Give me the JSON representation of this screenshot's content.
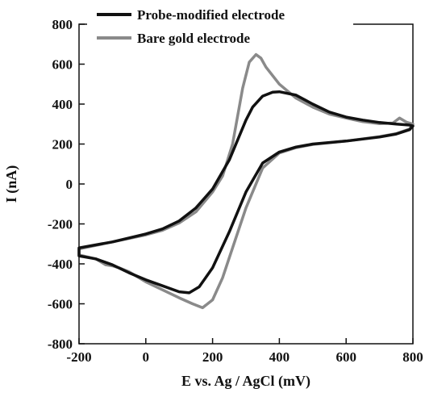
{
  "chart_data": {
    "type": "line",
    "title": "",
    "xlabel": "E vs. Ag / AgCl (mV)",
    "ylabel": "I (nA)",
    "xlim": [
      -200,
      800
    ],
    "ylim": [
      -800,
      800
    ],
    "xticks": [
      -200,
      0,
      200,
      400,
      600,
      800
    ],
    "yticks": [
      -800,
      -600,
      -400,
      -200,
      0,
      200,
      400,
      600,
      800
    ],
    "grid": false,
    "legend_position": "top-left",
    "series": [
      {
        "name": "Probe-modified electrode",
        "color": "#111111",
        "points": [
          [
            -200,
            -320
          ],
          [
            -100,
            -290
          ],
          [
            0,
            -250
          ],
          [
            50,
            -225
          ],
          [
            100,
            -185
          ],
          [
            150,
            -120
          ],
          [
            200,
            -25
          ],
          [
            250,
            120
          ],
          [
            300,
            320
          ],
          [
            320,
            385
          ],
          [
            350,
            440
          ],
          [
            380,
            460
          ],
          [
            400,
            462
          ],
          [
            450,
            445
          ],
          [
            500,
            400
          ],
          [
            550,
            360
          ],
          [
            600,
            335
          ],
          [
            650,
            320
          ],
          [
            700,
            308
          ],
          [
            750,
            300
          ],
          [
            790,
            295
          ],
          [
            800,
            290
          ],
          [
            790,
            272
          ],
          [
            750,
            250
          ],
          [
            700,
            235
          ],
          [
            600,
            215
          ],
          [
            500,
            200
          ],
          [
            450,
            185
          ],
          [
            400,
            160
          ],
          [
            350,
            105
          ],
          [
            300,
            -40
          ],
          [
            250,
            -240
          ],
          [
            200,
            -420
          ],
          [
            160,
            -515
          ],
          [
            130,
            -545
          ],
          [
            100,
            -540
          ],
          [
            50,
            -510
          ],
          [
            0,
            -480
          ],
          [
            -50,
            -445
          ],
          [
            -100,
            -405
          ],
          [
            -150,
            -375
          ],
          [
            -200,
            -360
          ]
        ]
      },
      {
        "name": "Bare gold electrode",
        "color": "#8a8a8a",
        "points": [
          [
            -200,
            -325
          ],
          [
            -100,
            -290
          ],
          [
            0,
            -255
          ],
          [
            50,
            -232
          ],
          [
            100,
            -195
          ],
          [
            150,
            -140
          ],
          [
            200,
            -40
          ],
          [
            230,
            40
          ],
          [
            260,
            200
          ],
          [
            290,
            480
          ],
          [
            310,
            610
          ],
          [
            330,
            648
          ],
          [
            345,
            630
          ],
          [
            360,
            585
          ],
          [
            400,
            500
          ],
          [
            450,
            430
          ],
          [
            500,
            385
          ],
          [
            550,
            350
          ],
          [
            600,
            330
          ],
          [
            650,
            312
          ],
          [
            700,
            302
          ],
          [
            740,
            305
          ],
          [
            760,
            330
          ],
          [
            780,
            310
          ],
          [
            800,
            300
          ],
          [
            790,
            275
          ],
          [
            750,
            252
          ],
          [
            700,
            237
          ],
          [
            600,
            215
          ],
          [
            500,
            198
          ],
          [
            450,
            182
          ],
          [
            400,
            155
          ],
          [
            350,
            80
          ],
          [
            300,
            -120
          ],
          [
            260,
            -320
          ],
          [
            230,
            -470
          ],
          [
            200,
            -580
          ],
          [
            170,
            -620
          ],
          [
            140,
            -600
          ],
          [
            100,
            -570
          ],
          [
            50,
            -530
          ],
          [
            0,
            -490
          ],
          [
            -50,
            -440
          ],
          [
            -80,
            -420
          ],
          [
            -100,
            -410
          ],
          [
            -120,
            -405
          ],
          [
            -150,
            -375
          ],
          [
            -200,
            -355
          ]
        ]
      }
    ]
  }
}
